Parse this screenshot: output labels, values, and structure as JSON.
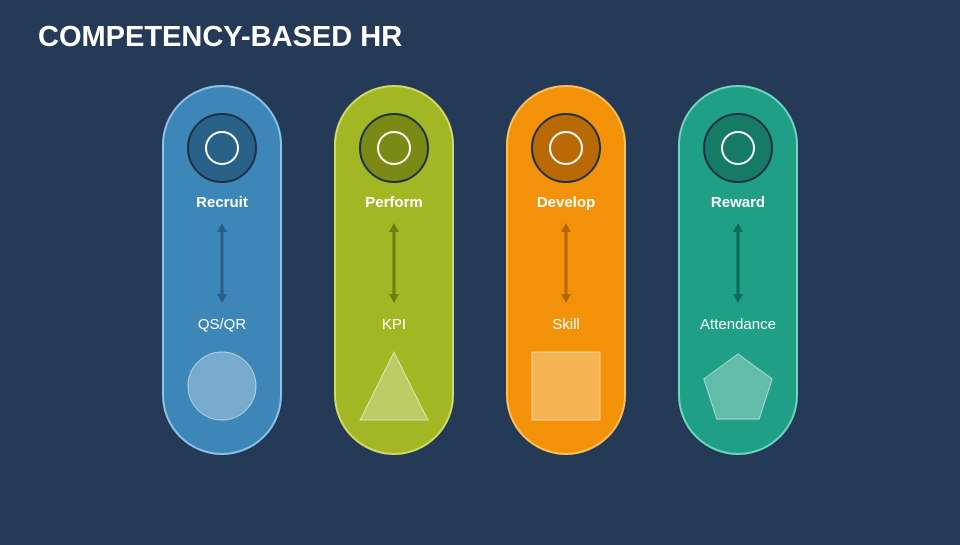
{
  "title": "COMPETENCY-BASED HR",
  "pillars": [
    {
      "label": "Recruit",
      "measure": "QS/QR"
    },
    {
      "label": "Perform",
      "measure": "KPI"
    },
    {
      "label": "Develop",
      "measure": "Skill"
    },
    {
      "label": "Reward",
      "measure": "Attendance"
    }
  ]
}
